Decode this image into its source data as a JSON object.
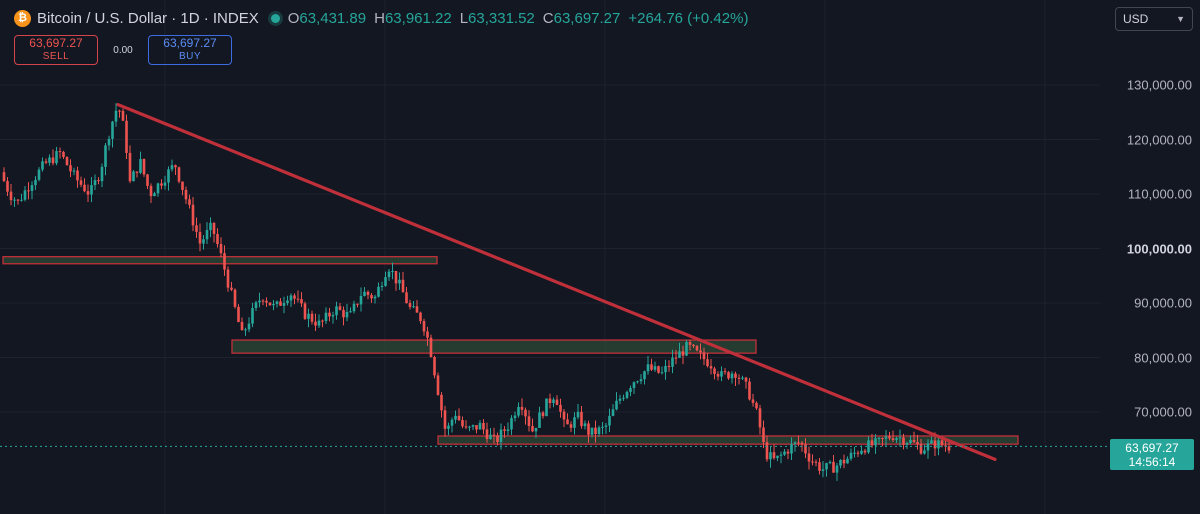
{
  "header": {
    "coin_symbol": "₿",
    "title": "Bitcoin / U.S. Dollar · 1D · INDEX",
    "open_label": "O",
    "open": "63,431.89",
    "high_label": "H",
    "high": "63,961.22",
    "low_label": "L",
    "low": "63,331.52",
    "close_label": "C",
    "close": "63,697.27",
    "change": "+264.76 (+0.42%)"
  },
  "trade": {
    "sell_price": "63,697.27",
    "sell_label": "SELL",
    "spread": "0.00",
    "buy_price": "63,697.27",
    "buy_label": "BUY"
  },
  "currency": {
    "value": "USD"
  },
  "price_tag": {
    "price": "63,697.27",
    "countdown": "14:56:14"
  },
  "colors": {
    "background": "#131722",
    "up": "#26a69a",
    "down": "#ef5350",
    "drawing": "#c0303a",
    "zone_fill": "#2d4a35"
  },
  "chart_data": {
    "type": "candlestick",
    "y_axis_ticks": [
      {
        "value": 130000,
        "label": "130,000.00",
        "bold": false
      },
      {
        "value": 120000,
        "label": "120,000.00",
        "bold": false
      },
      {
        "value": 110000,
        "label": "110,000.00",
        "bold": false
      },
      {
        "value": 100000,
        "label": "100,000.00",
        "bold": true
      },
      {
        "value": 90000,
        "label": "90,000.00",
        "bold": false
      },
      {
        "value": 80000,
        "label": "80,000.00",
        "bold": false
      },
      {
        "value": 70000,
        "label": "70,000.00",
        "bold": false
      }
    ],
    "ylim": [
      54000,
      140000
    ],
    "grid": true,
    "last_price": 63697.27,
    "price_path": [
      [
        0,
        114000
      ],
      [
        10,
        110000
      ],
      [
        18,
        108500
      ],
      [
        30,
        112000
      ],
      [
        45,
        115500
      ],
      [
        60,
        117500
      ],
      [
        75,
        113000
      ],
      [
        90,
        110000
      ],
      [
        100,
        114000
      ],
      [
        110,
        122000
      ],
      [
        118,
        126500
      ],
      [
        125,
        121000
      ],
      [
        130,
        112000
      ],
      [
        140,
        116000
      ],
      [
        150,
        110000
      ],
      [
        162,
        112500
      ],
      [
        175,
        115500
      ],
      [
        188,
        108000
      ],
      [
        200,
        101000
      ],
      [
        212,
        104000
      ],
      [
        222,
        98000
      ],
      [
        232,
        91000
      ],
      [
        242,
        84000
      ],
      [
        252,
        88000
      ],
      [
        262,
        91500
      ],
      [
        275,
        89000
      ],
      [
        290,
        92000
      ],
      [
        305,
        88000
      ],
      [
        320,
        86000
      ],
      [
        335,
        89000
      ],
      [
        350,
        87500
      ],
      [
        362,
        92000
      ],
      [
        375,
        91000
      ],
      [
        388,
        97000
      ],
      [
        400,
        93000
      ],
      [
        410,
        89000
      ],
      [
        422,
        87000
      ],
      [
        430,
        82000
      ],
      [
        438,
        74000
      ],
      [
        446,
        66000
      ],
      [
        455,
        70000
      ],
      [
        465,
        66500
      ],
      [
        480,
        67500
      ],
      [
        495,
        64500
      ],
      [
        510,
        68000
      ],
      [
        520,
        72500
      ],
      [
        532,
        66500
      ],
      [
        545,
        71000
      ],
      [
        555,
        73500
      ],
      [
        565,
        67000
      ],
      [
        578,
        69000
      ],
      [
        590,
        66000
      ],
      [
        605,
        67000
      ],
      [
        618,
        72000
      ],
      [
        632,
        75500
      ],
      [
        648,
        78000
      ],
      [
        662,
        77000
      ],
      [
        675,
        80000
      ],
      [
        688,
        82000
      ],
      [
        698,
        80500
      ],
      [
        710,
        79000
      ],
      [
        722,
        76500
      ],
      [
        735,
        77500
      ],
      [
        748,
        74000
      ],
      [
        758,
        69000
      ],
      [
        765,
        62500
      ],
      [
        775,
        61000
      ],
      [
        790,
        63500
      ],
      [
        800,
        64500
      ],
      [
        810,
        61500
      ],
      [
        822,
        59500
      ],
      [
        835,
        60000
      ],
      [
        848,
        61500
      ],
      [
        862,
        63500
      ],
      [
        878,
        64200
      ],
      [
        892,
        65800
      ],
      [
        908,
        64800
      ],
      [
        922,
        63300
      ],
      [
        935,
        64200
      ],
      [
        950,
        63700
      ]
    ],
    "drawings": {
      "trendline": {
        "start": [
          118,
          126400
        ],
        "end": [
          995,
          61300
        ]
      },
      "zones": [
        {
          "x0": 3,
          "x1": 437,
          "top": 98500,
          "bottom": 97200
        },
        {
          "x0": 232,
          "x1": 756,
          "top": 83200,
          "bottom": 80800
        },
        {
          "x0": 438,
          "x1": 1018,
          "top": 65600,
          "bottom": 64100
        }
      ]
    }
  }
}
